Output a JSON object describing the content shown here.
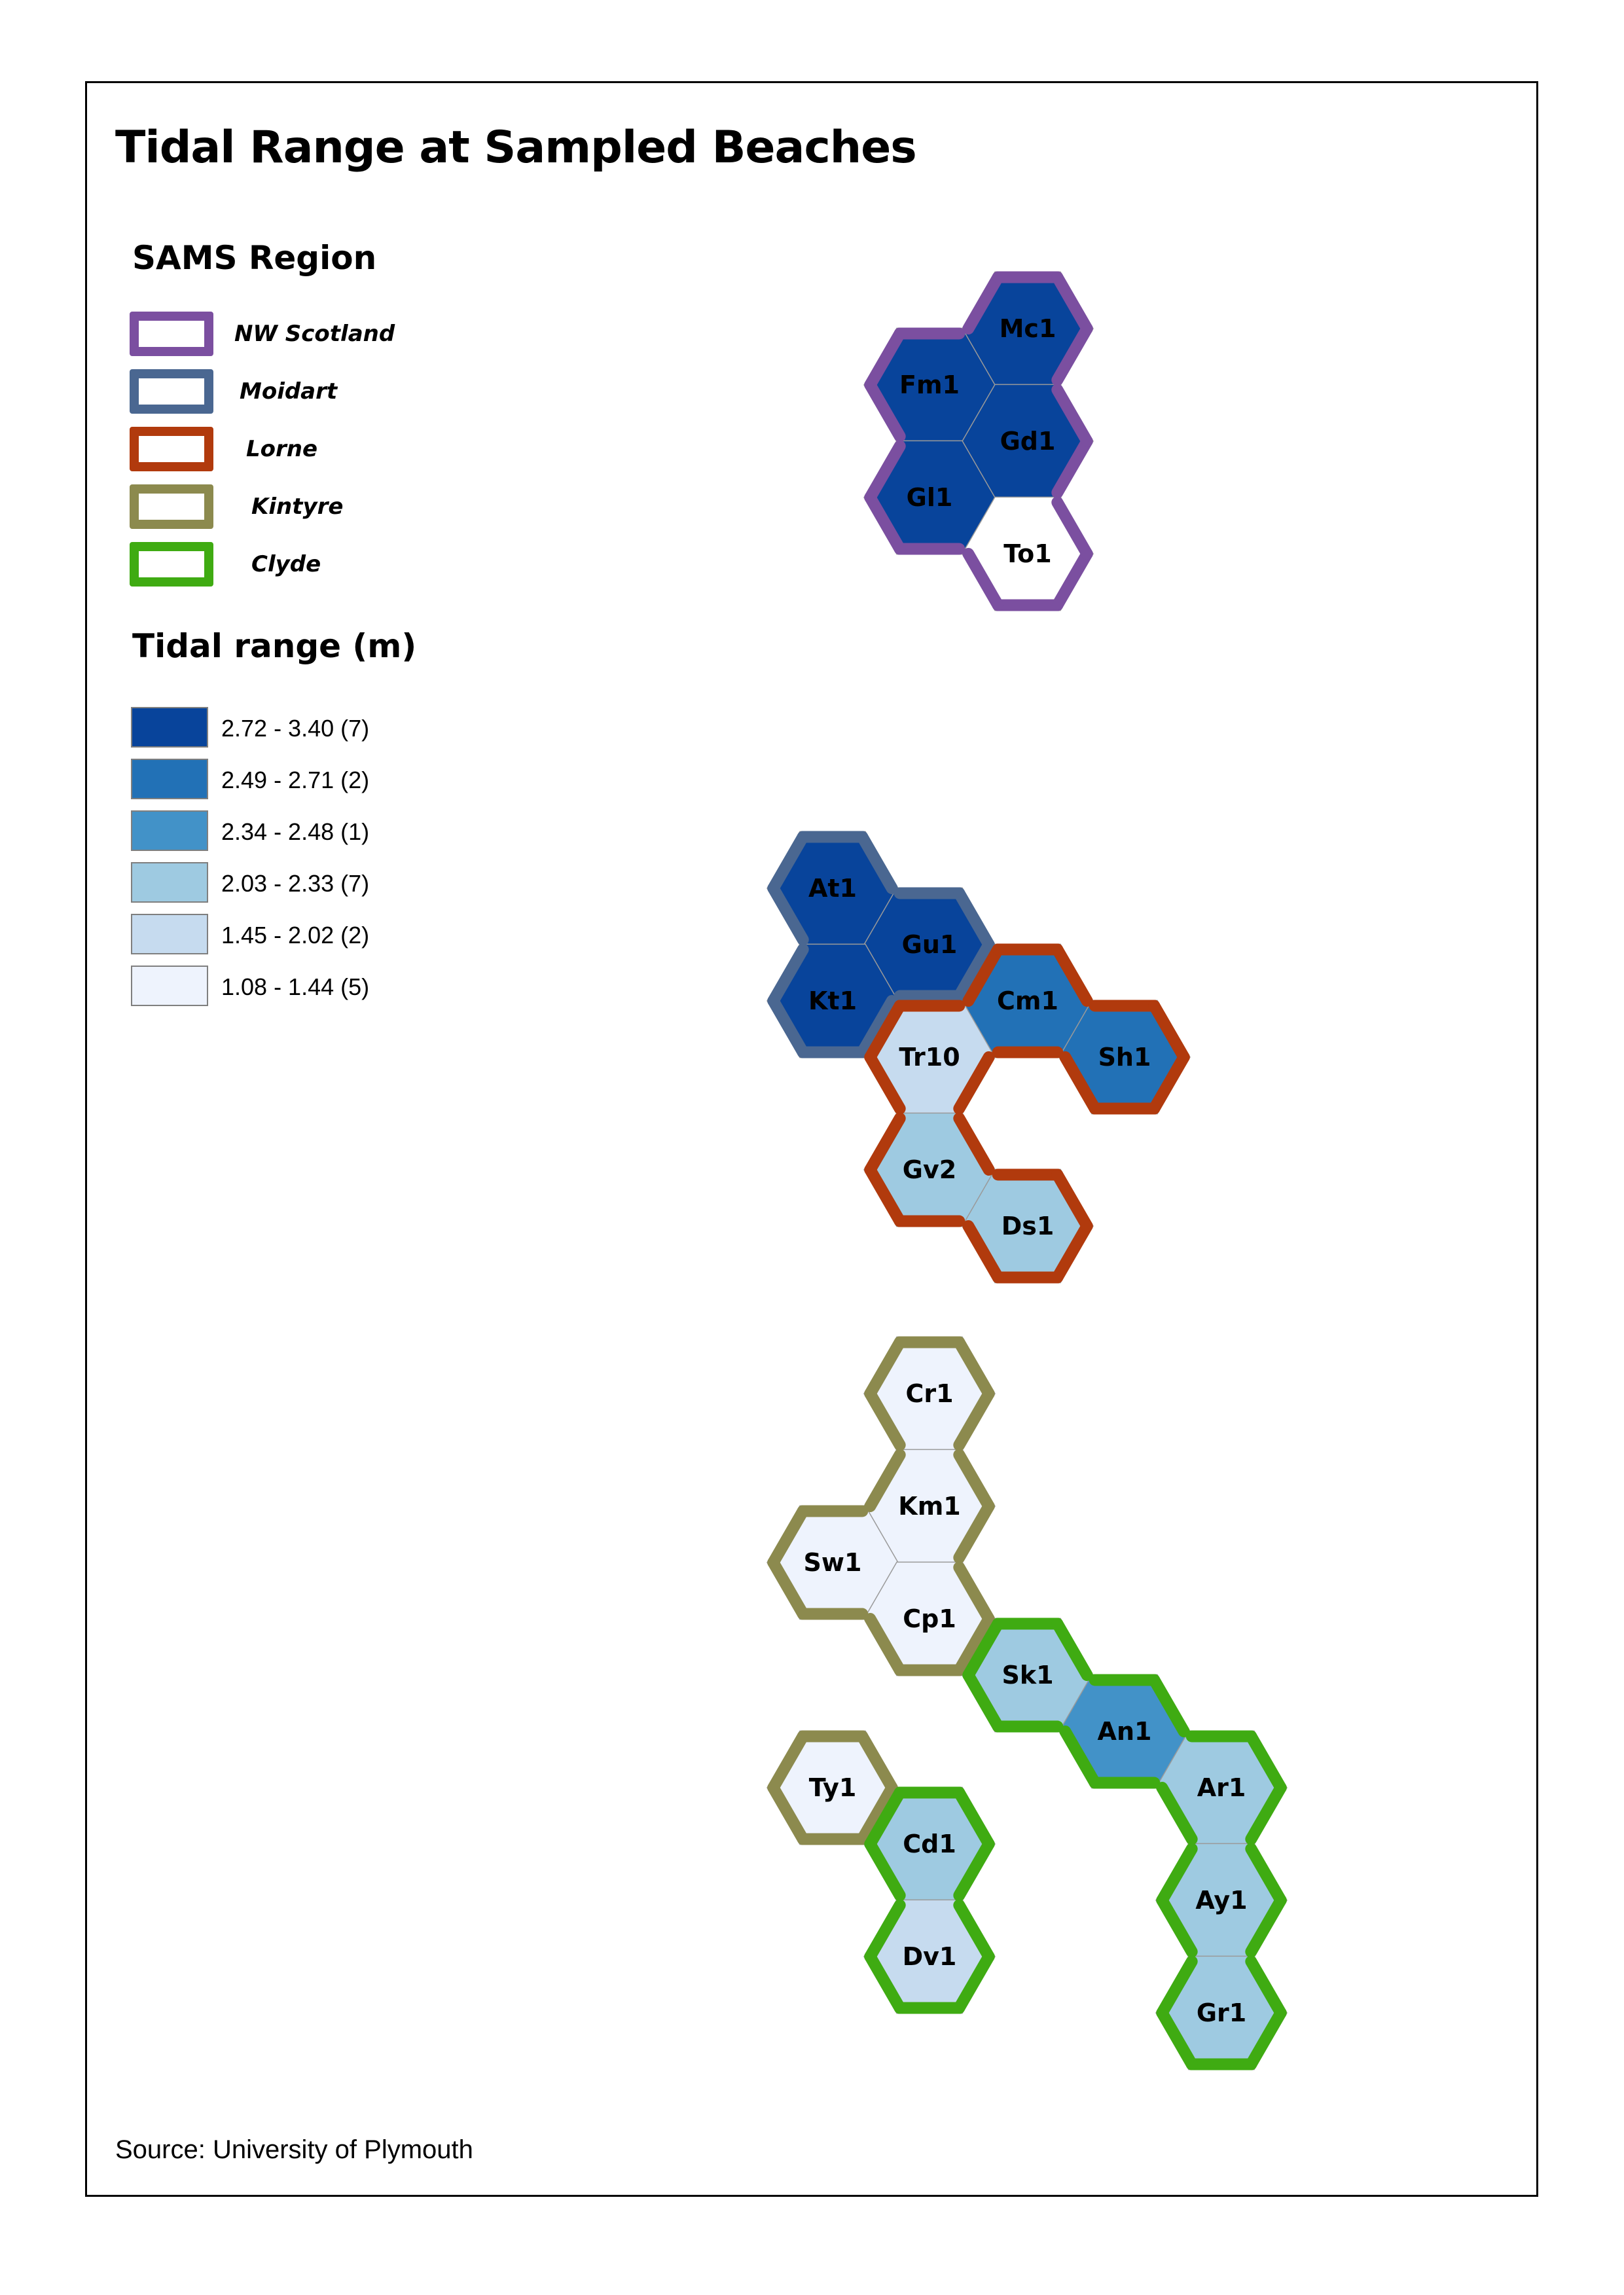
{
  "title": "Tidal Range at Sampled Beaches",
  "source": "Source: University of Plymouth",
  "legend_region": {
    "heading": "SAMS Region",
    "items": [
      {
        "label": "NW Scotland",
        "color": "#7b4fa0"
      },
      {
        "label": "Moidart",
        "color": "#4a6791"
      },
      {
        "label": "Lorne",
        "color": "#b13a0d"
      },
      {
        "label": "Kintyre",
        "color": "#8c8a4e"
      },
      {
        "label": "Clyde",
        "color": "#3fab12"
      }
    ]
  },
  "legend_tidal": {
    "heading": "Tidal range (m)",
    "items": [
      {
        "label": "2.72 - 3.40  (7)",
        "color": "#08449b"
      },
      {
        "label": "2.49 - 2.71  (2)",
        "color": "#2271b6"
      },
      {
        "label": "2.34 - 2.48  (1)",
        "color": "#4292c8"
      },
      {
        "label": "2.03 - 2.33  (7)",
        "color": "#9ecae1"
      },
      {
        "label": "1.45 - 2.02  (2)",
        "color": "#c6dbef"
      },
      {
        "label": "1.08 - 1.44  (5)",
        "color": "#eef3fd"
      }
    ]
  },
  "hexes": [
    {
      "label": "Mc1",
      "region": "NW Scotland",
      "class": 0
    },
    {
      "label": "Fm1",
      "region": "NW Scotland",
      "class": 0
    },
    {
      "label": "Gd1",
      "region": "NW Scotland",
      "class": 0
    },
    {
      "label": "Gl1",
      "region": "NW Scotland",
      "class": 0
    },
    {
      "label": "To1",
      "region": "NW Scotland",
      "class": null
    },
    {
      "label": "At1",
      "region": "Moidart",
      "class": 0
    },
    {
      "label": "Gu1",
      "region": "Moidart",
      "class": 0
    },
    {
      "label": "Kt1",
      "region": "Moidart",
      "class": 0
    },
    {
      "label": "Cm1",
      "region": "Lorne",
      "class": 1
    },
    {
      "label": "Sh1",
      "region": "Lorne",
      "class": 1
    },
    {
      "label": "Tr10",
      "region": "Lorne",
      "class": 4
    },
    {
      "label": "Gv2",
      "region": "Lorne",
      "class": 3
    },
    {
      "label": "Ds1",
      "region": "Lorne",
      "class": 3
    },
    {
      "label": "Cr1",
      "region": "Kintyre",
      "class": 5
    },
    {
      "label": "Km1",
      "region": "Kintyre",
      "class": 5
    },
    {
      "label": "Sw1",
      "region": "Kintyre",
      "class": 5
    },
    {
      "label": "Cp1",
      "region": "Kintyre",
      "class": 5
    },
    {
      "label": "Sk1",
      "region": "Clyde",
      "class": 3
    },
    {
      "label": "An1",
      "region": "Clyde",
      "class": 2
    },
    {
      "label": "Ar1",
      "region": "Clyde",
      "class": 3
    },
    {
      "label": "Ay1",
      "region": "Clyde",
      "class": 3
    },
    {
      "label": "Gr1",
      "region": "Clyde",
      "class": 3
    },
    {
      "label": "Ty1",
      "region": "Kintyre",
      "class": 5
    },
    {
      "label": "Cd1",
      "region": "Clyde",
      "class": 3
    },
    {
      "label": "Dv1",
      "region": "Clyde",
      "class": 4
    }
  ]
}
